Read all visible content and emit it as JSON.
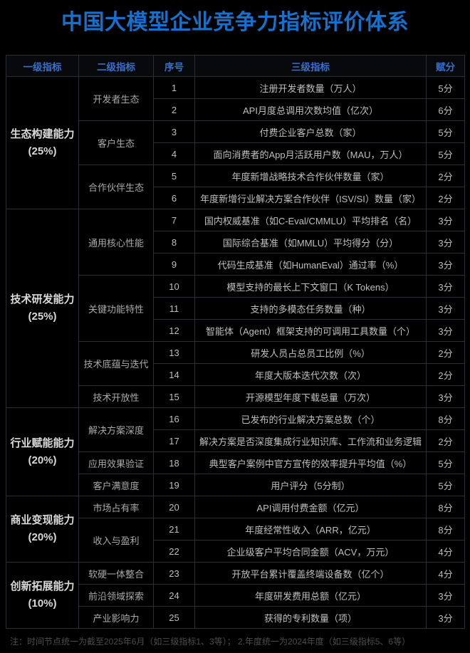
{
  "title": "中国大模型企业竞争力指标评价体系",
  "note": "注：时间节点统一为截至2025年6月（如三级指标1、3等）； 2.年度统一为2024年度（如三级指标5、6等）",
  "colors": {
    "background": "#000000",
    "title_blue": "#1770CB",
    "header_blue": "#3C6FC8",
    "border": "#2B2E35",
    "body_text": "#BFBFBF",
    "level1_text": "#D9D9D9",
    "level2_text": "#A9A9A9",
    "note_text": "#4D4D4D"
  },
  "table": {
    "headers": [
      "一级指标",
      "二级指标",
      "序号",
      "三级指标",
      "赋分"
    ],
    "groups": [
      {
        "level1": "生态构建能力",
        "weight": "(25%)",
        "subgroups": [
          {
            "level2": "开发者生态",
            "rows": [
              {
                "no": "1",
                "indicator": "注册开发者数量（万人）",
                "score": "5分"
              },
              {
                "no": "2",
                "indicator": "API月度总调用次数均值（亿次）",
                "score": "6分"
              }
            ]
          },
          {
            "level2": "客户生态",
            "rows": [
              {
                "no": "3",
                "indicator": "付费企业客户总数（家）",
                "score": "5分"
              },
              {
                "no": "4",
                "indicator": "面向消费者的App月活跃用户数（MAU，万人）",
                "score": "5分"
              }
            ]
          },
          {
            "level2": "合作伙伴生态",
            "rows": [
              {
                "no": "5",
                "indicator": "年度新增战略技术合作伙伴数量（家）",
                "score": "2分"
              },
              {
                "no": "6",
                "indicator": "年度新增行业解决方案合作伙伴（ISV/SI）数量（家）",
                "score": "2分"
              }
            ]
          }
        ]
      },
      {
        "level1": "技术研发能力",
        "weight": "(25%)",
        "subgroups": [
          {
            "level2": "通用核心性能",
            "rows": [
              {
                "no": "7",
                "indicator": "国内权威基准（如C-Eval/CMMLU）平均排名（名）",
                "score": "3分"
              },
              {
                "no": "8",
                "indicator": "国际综合基准（如MMLU）平均得分（分）",
                "score": "3分"
              },
              {
                "no": "9",
                "indicator": "代码生成基准（如HumanEval）通过率（%）",
                "score": "3分"
              }
            ]
          },
          {
            "level2": "关键功能特性",
            "rows": [
              {
                "no": "10",
                "indicator": "模型支持的最长上下文窗口（K Tokens）",
                "score": "3分"
              },
              {
                "no": "11",
                "indicator": "支持的多模态任务数量（种）",
                "score": "3分"
              },
              {
                "no": "12",
                "indicator": "智能体（Agent）框架支持的可调用工具数量（个）",
                "score": "3分"
              }
            ]
          },
          {
            "level2": "技术底蕴与迭代",
            "rows": [
              {
                "no": "13",
                "indicator": "研发人员占总员工比例（%）",
                "score": "2分"
              },
              {
                "no": "14",
                "indicator": "年度大版本迭代次数（次）",
                "score": "2分"
              }
            ]
          },
          {
            "level2": "技术开放性",
            "rows": [
              {
                "no": "15",
                "indicator": "开源模型年度下载总量（万次）",
                "score": "3分"
              }
            ]
          }
        ]
      },
      {
        "level1": "行业赋能能力",
        "weight": "(20%)",
        "subgroups": [
          {
            "level2": "解决方案深度",
            "rows": [
              {
                "no": "16",
                "indicator": "已发布的行业解决方案总数（个）",
                "score": "8分"
              },
              {
                "no": "17",
                "indicator": "解决方案是否深度集成行业知识库、工作流和业务逻辑",
                "score": "2分"
              }
            ]
          },
          {
            "level2": "应用效果验证",
            "rows": [
              {
                "no": "18",
                "indicator": "典型客户案例中官方宣传的效率提升平均值（%）",
                "score": "5分"
              }
            ]
          },
          {
            "level2": "客户满意度",
            "rows": [
              {
                "no": "19",
                "indicator": "用户评分（5分制）",
                "score": "5分"
              }
            ]
          }
        ]
      },
      {
        "level1": "商业变现能力",
        "weight": "(20%)",
        "subgroups": [
          {
            "level2": "市场占有率",
            "rows": [
              {
                "no": "20",
                "indicator": "API调用付费金额（亿元）",
                "score": "8分"
              }
            ]
          },
          {
            "level2": "收入与盈利",
            "rows": [
              {
                "no": "21",
                "indicator": "年度经常性收入（ARR，亿元）",
                "score": "8分"
              },
              {
                "no": "22",
                "indicator": "企业级客户平均合同金额（ACV，万元）",
                "score": "4分"
              }
            ]
          }
        ]
      },
      {
        "level1": "创新拓展能力",
        "weight": "(10%)",
        "subgroups": [
          {
            "level2": "软硬一体整合",
            "rows": [
              {
                "no": "23",
                "indicator": "开放平台累计覆盖终端设备数（亿个）",
                "score": "4分"
              }
            ]
          },
          {
            "level2": "前沿领域探索",
            "rows": [
              {
                "no": "24",
                "indicator": "年度研发费用总额（亿元）",
                "score": "3分"
              }
            ]
          },
          {
            "level2": "产业影响力",
            "rows": [
              {
                "no": "25",
                "indicator": "获得的专利数量（项）",
                "score": "3分"
              }
            ]
          }
        ]
      }
    ]
  }
}
